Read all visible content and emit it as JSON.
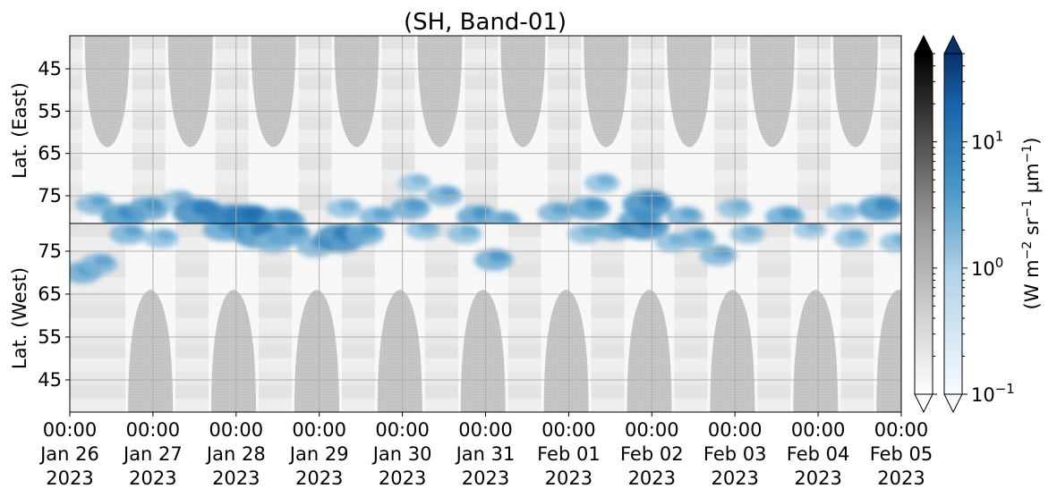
{
  "chart_data": {
    "type": "heatmap",
    "title": "(SH, Band-01)",
    "panels": [
      {
        "name": "east",
        "ylabel": "Lat. (East)",
        "yticks": [
          "45",
          "55",
          "65",
          "75"
        ],
        "ylim": [
          40,
          83
        ]
      },
      {
        "name": "west",
        "ylabel": "Lat. (West)",
        "yticks": [
          "75",
          "65",
          "55",
          "45"
        ],
        "ylim": [
          83,
          40
        ]
      }
    ],
    "xticks": [
      {
        "time": "00:00",
        "date": "Jan 26",
        "year": "2023"
      },
      {
        "time": "00:00",
        "date": "Jan 27",
        "year": "2023"
      },
      {
        "time": "00:00",
        "date": "Jan 28",
        "year": "2023"
      },
      {
        "time": "00:00",
        "date": "Jan 29",
        "year": "2023"
      },
      {
        "time": "00:00",
        "date": "Jan 30",
        "year": "2023"
      },
      {
        "time": "00:00",
        "date": "Jan 31",
        "year": "2023"
      },
      {
        "time": "00:00",
        "date": "Feb 01",
        "year": "2023"
      },
      {
        "time": "00:00",
        "date": "Feb 02",
        "year": "2023"
      },
      {
        "time": "00:00",
        "date": "Feb 03",
        "year": "2023"
      },
      {
        "time": "00:00",
        "date": "Feb 04",
        "year": "2023"
      },
      {
        "time": "00:00",
        "date": "Feb 05",
        "year": "2023"
      }
    ],
    "xlim": [
      "2023-01-26",
      "2023-02-05"
    ],
    "grid": true,
    "night_gaps": [
      {
        "panel": "east",
        "centers_day": [
          0.45,
          1.45,
          2.45,
          3.45,
          4.45,
          5.45,
          6.45,
          7.45,
          8.45,
          9.45
        ],
        "max_lat": 63.5
      },
      {
        "panel": "west",
        "centers_day": [
          0.97,
          1.97,
          2.97,
          3.97,
          4.97,
          5.97,
          6.97,
          7.97,
          8.97,
          9.97
        ],
        "max_lat": 66
      }
    ],
    "colorbars": [
      {
        "name": "gray",
        "cmap": "Greys",
        "extend": "both"
      },
      {
        "name": "blue",
        "cmap": "Blues",
        "extend": "both",
        "scale": "log",
        "range": [
          0.1,
          50
        ],
        "tick_labels": [
          "10^1",
          "10^0",
          "10^-1"
        ],
        "tick_values": [
          10,
          1,
          0.1
        ]
      }
    ],
    "colorbar_label": "(W m^-2 sr^-1 μm^-1)",
    "colorbar_label_parts": {
      "prefix": "(W m",
      "exp1": "−2",
      "mid": " sr",
      "exp2": "−1",
      "mu": " μm",
      "exp3": "−1",
      "suffix": ")"
    },
    "aurora_blobs": [
      {
        "panel": "east",
        "day": 0.3,
        "lat": 77,
        "intensity": 2.0
      },
      {
        "panel": "east",
        "day": 0.65,
        "lat": 80,
        "intensity": 4.0
      },
      {
        "panel": "east",
        "day": 0.95,
        "lat": 78,
        "intensity": 3.0
      },
      {
        "panel": "east",
        "day": 1.3,
        "lat": 76,
        "intensity": 1.5
      },
      {
        "panel": "east",
        "day": 1.55,
        "lat": 79,
        "intensity": 6.0
      },
      {
        "panel": "east",
        "day": 1.95,
        "lat": 80.5,
        "intensity": 8.0
      },
      {
        "panel": "east",
        "day": 2.15,
        "lat": 80.5,
        "intensity": 9.0
      },
      {
        "panel": "east",
        "day": 2.55,
        "lat": 81,
        "intensity": 4.0
      },
      {
        "panel": "east",
        "day": 3.3,
        "lat": 78,
        "intensity": 1.5
      },
      {
        "panel": "east",
        "day": 3.7,
        "lat": 80,
        "intensity": 2.0
      },
      {
        "panel": "east",
        "day": 4.1,
        "lat": 78,
        "intensity": 2.5
      },
      {
        "panel": "east",
        "day": 4.15,
        "lat": 72,
        "intensity": 1.2
      },
      {
        "panel": "east",
        "day": 4.5,
        "lat": 75,
        "intensity": 2.0
      },
      {
        "panel": "east",
        "day": 4.9,
        "lat": 80,
        "intensity": 3.0
      },
      {
        "panel": "east",
        "day": 5.2,
        "lat": 81,
        "intensity": 2.0
      },
      {
        "panel": "east",
        "day": 5.85,
        "lat": 79,
        "intensity": 2.0
      },
      {
        "panel": "east",
        "day": 6.25,
        "lat": 78,
        "intensity": 3.0
      },
      {
        "panel": "east",
        "day": 6.4,
        "lat": 72,
        "intensity": 1.5
      },
      {
        "panel": "east",
        "day": 6.85,
        "lat": 81,
        "intensity": 3.5
      },
      {
        "panel": "east",
        "day": 6.95,
        "lat": 77,
        "intensity": 5.0
      },
      {
        "panel": "east",
        "day": 7.4,
        "lat": 80,
        "intensity": 2.0
      },
      {
        "panel": "east",
        "day": 8.0,
        "lat": 78,
        "intensity": 1.5
      },
      {
        "panel": "east",
        "day": 8.6,
        "lat": 80,
        "intensity": 2.5
      },
      {
        "panel": "east",
        "day": 9.3,
        "lat": 79,
        "intensity": 1.2
      },
      {
        "panel": "east",
        "day": 9.75,
        "lat": 78,
        "intensity": 4.0
      },
      {
        "panel": "west",
        "day": 0.15,
        "lat": 70,
        "intensity": 2.5
      },
      {
        "panel": "west",
        "day": 0.35,
        "lat": 72,
        "intensity": 2.0
      },
      {
        "panel": "west",
        "day": 0.7,
        "lat": 79,
        "intensity": 2.0
      },
      {
        "panel": "west",
        "day": 1.1,
        "lat": 78,
        "intensity": 1.5
      },
      {
        "panel": "west",
        "day": 1.85,
        "lat": 80,
        "intensity": 3.0
      },
      {
        "panel": "west",
        "day": 2.25,
        "lat": 79,
        "intensity": 5.0
      },
      {
        "panel": "west",
        "day": 2.45,
        "lat": 77,
        "intensity": 2.0
      },
      {
        "panel": "west",
        "day": 2.65,
        "lat": 79,
        "intensity": 3.0
      },
      {
        "panel": "west",
        "day": 2.95,
        "lat": 76,
        "intensity": 2.0
      },
      {
        "panel": "west",
        "day": 3.25,
        "lat": 78,
        "intensity": 6.0
      },
      {
        "panel": "west",
        "day": 3.55,
        "lat": 79,
        "intensity": 2.5
      },
      {
        "panel": "west",
        "day": 4.25,
        "lat": 80,
        "intensity": 1.5
      },
      {
        "panel": "west",
        "day": 4.75,
        "lat": 79,
        "intensity": 1.5
      },
      {
        "panel": "west",
        "day": 5.1,
        "lat": 73,
        "intensity": 2.5
      },
      {
        "panel": "west",
        "day": 6.2,
        "lat": 79,
        "intensity": 1.5
      },
      {
        "panel": "west",
        "day": 6.55,
        "lat": 80,
        "intensity": 2.5
      },
      {
        "panel": "west",
        "day": 6.9,
        "lat": 81,
        "intensity": 6.0
      },
      {
        "panel": "west",
        "day": 7.25,
        "lat": 77,
        "intensity": 1.5
      },
      {
        "panel": "west",
        "day": 7.55,
        "lat": 78,
        "intensity": 2.0
      },
      {
        "panel": "west",
        "day": 7.8,
        "lat": 74,
        "intensity": 2.0
      },
      {
        "panel": "west",
        "day": 8.15,
        "lat": 79,
        "intensity": 1.5
      },
      {
        "panel": "west",
        "day": 8.9,
        "lat": 80,
        "intensity": 1.2
      },
      {
        "panel": "west",
        "day": 9.4,
        "lat": 78,
        "intensity": 1.5
      },
      {
        "panel": "west",
        "day": 9.95,
        "lat": 77,
        "intensity": 1.5
      }
    ]
  }
}
